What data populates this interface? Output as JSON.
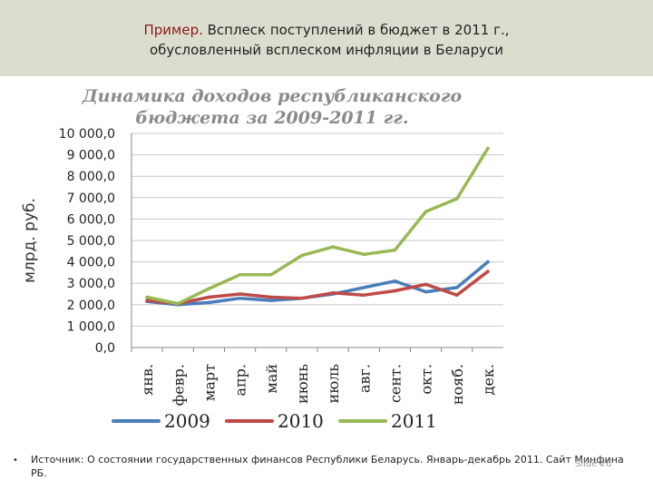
{
  "header": {
    "title_prefix": "Пример.",
    "title_line1_rest": " Всплеск поступлений в бюджет в 2011 г.,",
    "title_line2": "обусловленный всплеском инфляции в Беларуси"
  },
  "colors": {
    "header_bg": "#ddddcf",
    "accent": "#8b1a1a",
    "series_2009": "#4a7ebb",
    "series_2010": "#be4b48",
    "series_2011": "#98b954"
  },
  "chart_data": {
    "type": "line",
    "title_lines": [
      "Динамика доходов республиканского",
      "бюджета за 2009-2011 гг."
    ],
    "ylabel": "млрд. руб.",
    "xlabel": "",
    "categories": [
      "янв.",
      "февр.",
      "март",
      "апр.",
      "май",
      "июнь",
      "июль",
      "авг.",
      "сент.",
      "окт.",
      "нояб.",
      "дек."
    ],
    "ylim": [
      0,
      10000
    ],
    "yticks": [
      0,
      1000,
      2000,
      3000,
      4000,
      5000,
      6000,
      7000,
      8000,
      9000,
      10000
    ],
    "ytick_labels": [
      "0,0",
      "1 000,0",
      "2 000,0",
      "3 000,0",
      "4 000,0",
      "5 000,0",
      "6 000,0",
      "7 000,0",
      "8 000,0",
      "9 000,0",
      "10 000,0"
    ],
    "grid": true,
    "legend_position": "bottom",
    "series": [
      {
        "name": "2009",
        "color": "#4a7ebb",
        "values": [
          2150,
          2000,
          2100,
          2300,
          2200,
          2300,
          2500,
          2800,
          3100,
          2600,
          2800,
          4000
        ]
      },
      {
        "name": "2010",
        "color": "#be4b48",
        "values": [
          2200,
          2050,
          2350,
          2500,
          2350,
          2300,
          2550,
          2450,
          2650,
          2950,
          2450,
          3550
        ]
      },
      {
        "name": "2011",
        "color": "#98b954",
        "values": [
          2350,
          2050,
          2750,
          3400,
          3400,
          4300,
          4700,
          4350,
          4550,
          6350,
          6950,
          9300
        ]
      }
    ]
  },
  "footer": {
    "bullet": "•",
    "source_text": "Источник: О состоянии государственных финансов Республики Беларусь. Январь-декабрь 2011. Сайт Минфина РБ.",
    "slide_number": "Slide 26"
  }
}
